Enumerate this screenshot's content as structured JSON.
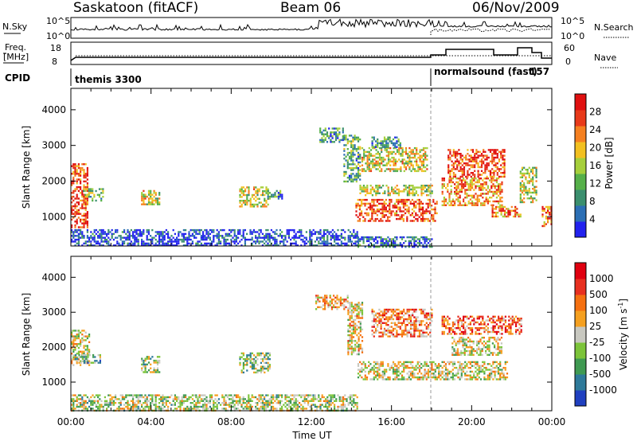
{
  "header": {
    "station": "Saskatoon (fitACF)",
    "beam": "Beam 06",
    "date": "06/Nov/2009"
  },
  "strip": {
    "nsky_label": "N.Sky",
    "nsky_ticks": [
      "10^5",
      "10^0"
    ],
    "nsearch_label": "N.Search",
    "nsearch_ticks": [
      "10^5",
      "10^0"
    ],
    "freq_label_1": "Freq.",
    "freq_label_2": "[MHz]",
    "freq_ticks": [
      "18",
      "8"
    ],
    "nave_label": "Nave",
    "nave_ticks": [
      "60",
      "0"
    ],
    "cpid_label": "CPID",
    "cpid_segments": [
      {
        "name": "themis 3300",
        "start_hour": 0,
        "end_hour": 18.1
      },
      {
        "name": "normalsound (fast)",
        "id": "157",
        "start_hour": 18.1,
        "end_hour": 24
      }
    ]
  },
  "chart_data": [
    {
      "type": "heatmap",
      "name": "power-panel",
      "xlabel": "",
      "ylabel": "Slant Range [km]",
      "xlim_hours": [
        0,
        24
      ],
      "ylim": [
        180,
        4600
      ],
      "yticks": [
        "1000",
        "2000",
        "3000",
        "4000"
      ],
      "colorbar": {
        "label": "Power [dB]",
        "ticks": [
          "28",
          "24",
          "20",
          "16",
          "12",
          "8",
          "4"
        ],
        "colors": [
          "#2222ee",
          "#2c6fb5",
          "#3b8f6e",
          "#56b04a",
          "#a6cf3b",
          "#f2c020",
          "#f58020",
          "#e83a1a",
          "#e01010"
        ]
      },
      "regions": [
        {
          "t0": 0.0,
          "t1": 0.8,
          "r0": 700,
          "r1": 2500,
          "level": 0.85
        },
        {
          "t0": 0.6,
          "t1": 1.6,
          "r0": 1450,
          "r1": 1800,
          "level": 0.4
        },
        {
          "t0": 3.5,
          "t1": 4.4,
          "r0": 1350,
          "r1": 1750,
          "level": 0.55
        },
        {
          "t0": 8.4,
          "t1": 9.8,
          "r0": 1300,
          "r1": 1850,
          "level": 0.55
        },
        {
          "t0": 9.8,
          "t1": 10.5,
          "r0": 1500,
          "r1": 1750,
          "level": 0.3
        },
        {
          "t0": 12.4,
          "t1": 13.6,
          "r0": 3100,
          "r1": 3500,
          "level": 0.3
        },
        {
          "t0": 13.6,
          "t1": 14.4,
          "r0": 2000,
          "r1": 3300,
          "level": 0.35
        },
        {
          "t0": 14.2,
          "t1": 18.3,
          "r0": 900,
          "r1": 1500,
          "level": 0.8
        },
        {
          "t0": 14.4,
          "t1": 18.0,
          "r0": 1600,
          "r1": 1900,
          "level": 0.5
        },
        {
          "t0": 14.5,
          "t1": 17.8,
          "r0": 2300,
          "r1": 2950,
          "level": 0.55
        },
        {
          "t0": 15.0,
          "t1": 16.4,
          "r0": 2950,
          "r1": 3250,
          "level": 0.3
        },
        {
          "t0": 18.5,
          "t1": 21.5,
          "r0": 1300,
          "r1": 2100,
          "level": 0.7
        },
        {
          "t0": 18.8,
          "t1": 21.6,
          "r0": 2100,
          "r1": 2900,
          "level": 0.85
        },
        {
          "t0": 21.0,
          "t1": 22.4,
          "r0": 1000,
          "r1": 1300,
          "level": 0.75
        },
        {
          "t0": 22.4,
          "t1": 23.2,
          "r0": 1400,
          "r1": 2400,
          "level": 0.5
        },
        {
          "t0": 23.5,
          "t1": 24.0,
          "r0": 750,
          "r1": 1300,
          "level": 0.8
        },
        {
          "t0": 0.0,
          "t1": 14.3,
          "r0": 180,
          "r1": 650,
          "level": 0.1
        },
        {
          "t0": 14.3,
          "t1": 18.0,
          "r0": 180,
          "r1": 450,
          "level": 0.2
        }
      ]
    },
    {
      "type": "heatmap",
      "name": "velocity-panel",
      "xlabel": "Time UT",
      "ylabel": "Slant Range [km]",
      "xlim_hours": [
        0,
        24
      ],
      "ylim": [
        180,
        4600
      ],
      "yticks": [
        "1000",
        "2000",
        "3000",
        "4000"
      ],
      "xticks": [
        "00:00",
        "04:00",
        "08:00",
        "12:00",
        "16:00",
        "20:00",
        "00:00"
      ],
      "colorbar": {
        "label": "Velocity [m s",
        "label_sup": "-1",
        "label_end": "]",
        "ticks": [
          "1000",
          "500",
          "100",
          "25",
          "-25",
          "-100",
          "-500",
          "-1000"
        ],
        "colors": [
          "#2040c0",
          "#2e7a9a",
          "#3f9a52",
          "#7cc43a",
          "#c8c8c0",
          "#f5a020",
          "#f57010",
          "#e83020",
          "#e00010"
        ]
      },
      "regions": [
        {
          "t0": 0.0,
          "t1": 0.9,
          "r0": 1500,
          "r1": 2500,
          "level": 0.5
        },
        {
          "t0": 0.2,
          "t1": 1.5,
          "r0": 1550,
          "r1": 1800,
          "level": 0.35
        },
        {
          "t0": 3.5,
          "t1": 4.4,
          "r0": 1300,
          "r1": 1750,
          "level": 0.4
        },
        {
          "t0": 8.4,
          "t1": 9.9,
          "r0": 1300,
          "r1": 1850,
          "level": 0.4
        },
        {
          "t0": 12.2,
          "t1": 13.8,
          "r0": 3100,
          "r1": 3500,
          "level": 0.6
        },
        {
          "t0": 13.8,
          "t1": 14.5,
          "r0": 1800,
          "r1": 3300,
          "level": 0.55
        },
        {
          "t0": 14.3,
          "t1": 21.8,
          "r0": 1100,
          "r1": 1600,
          "level": 0.5
        },
        {
          "t0": 15.0,
          "t1": 18.0,
          "r0": 2300,
          "r1": 3100,
          "level": 0.7
        },
        {
          "t0": 18.5,
          "t1": 22.5,
          "r0": 2400,
          "r1": 2900,
          "level": 0.75
        },
        {
          "t0": 19.0,
          "t1": 21.5,
          "r0": 1800,
          "r1": 2300,
          "level": 0.5
        },
        {
          "t0": 0.0,
          "t1": 14.3,
          "r0": 200,
          "r1": 650,
          "level": 0.45
        }
      ]
    }
  ]
}
